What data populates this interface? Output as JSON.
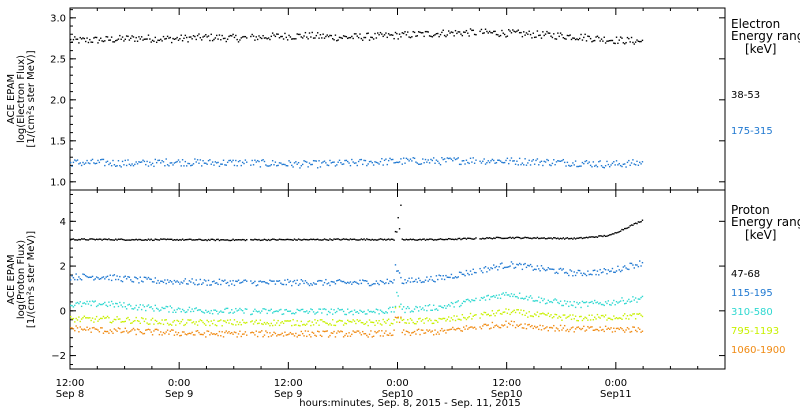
{
  "x_axis": {
    "ticks": [
      {
        "time": "12:00",
        "date": "Sep 8"
      },
      {
        "time": "0:00",
        "date": "Sep 9"
      },
      {
        "time": "12:00",
        "date": "Sep 9"
      },
      {
        "time": "0:00",
        "date": "Sep10"
      },
      {
        "time": "12:00",
        "date": "Sep10"
      },
      {
        "time": "0:00",
        "date": "Sep11"
      }
    ],
    "label": "hours:minutes, Sep.  8, 2015 - Sep. 11, 2015"
  },
  "chart_data": [
    {
      "type": "scatter",
      "ylabel_lines": [
        "ACE EPAM",
        "log(Electron Flux)",
        "[1/(cm²s ster MeV)]"
      ],
      "ylim": [
        0.9,
        3.12
      ],
      "yticks": [
        1.0,
        1.5,
        2.0,
        2.5,
        3.0
      ],
      "ytick_labels": [
        "1.0",
        "1.5",
        "2.0",
        "2.5",
        "3.0"
      ],
      "x_range": [
        "2015-09-08 12:00",
        "2015-09-11 12:00"
      ],
      "data_coverage": [
        "2015-09-08 12:00",
        "2015-09-11 03:00"
      ],
      "legend_heading": [
        "Electron",
        "Energy ranges",
        "[keV]"
      ],
      "series": [
        {
          "name": "38-53",
          "color": "#000000",
          "y": [
            2.73,
            2.74,
            2.76,
            2.75,
            2.77,
            2.76,
            2.78,
            2.79,
            2.77,
            2.78,
            2.8,
            2.82,
            2.83,
            2.82,
            2.8,
            2.78,
            2.74,
            2.72
          ]
        },
        {
          "name": "175-315",
          "color": "#1f78d1",
          "y": [
            1.24,
            1.24,
            1.23,
            1.25,
            1.24,
            1.24,
            1.23,
            1.22,
            1.23,
            1.25,
            1.26,
            1.26,
            1.27,
            1.26,
            1.25,
            1.24,
            1.22,
            1.24
          ]
        }
      ]
    },
    {
      "type": "scatter",
      "ylabel_lines": [
        "ACE EPAM",
        "log(Proton Flux)",
        "[1/(cm²s ster MeV)]"
      ],
      "ylim": [
        -2.6,
        5.4
      ],
      "yticks": [
        -2,
        0,
        2,
        4
      ],
      "ytick_labels": [
        "−2",
        "0",
        "2",
        "4"
      ],
      "legend_heading": [
        "Proton",
        "Energy ranges",
        "[keV]"
      ],
      "series": [
        {
          "name": "47-68",
          "color": "#000000",
          "y": [
            3.22,
            3.22,
            3.21,
            3.21,
            3.2,
            3.2,
            3.21,
            3.21,
            3.22,
            3.22,
            3.21,
            3.22,
            3.26,
            3.3,
            3.28,
            3.26,
            3.4,
            4.1
          ]
        },
        {
          "name": "115-195",
          "color": "#1f78d1",
          "y": [
            1.55,
            1.55,
            1.4,
            1.35,
            1.3,
            1.3,
            1.28,
            1.3,
            1.28,
            1.3,
            1.35,
            1.5,
            1.8,
            2.1,
            1.9,
            1.7,
            1.8,
            2.2
          ]
        },
        {
          "name": "310-580",
          "color": "#2ed8d0",
          "y": [
            0.3,
            0.35,
            0.2,
            0.1,
            0.05,
            0.0,
            0.0,
            0.0,
            0.0,
            0.0,
            0.1,
            0.2,
            0.5,
            0.8,
            0.5,
            0.3,
            0.4,
            0.6
          ]
        },
        {
          "name": "795-1193",
          "color": "#c8f000",
          "y": [
            -0.35,
            -0.35,
            -0.4,
            -0.5,
            -0.5,
            -0.5,
            -0.5,
            -0.5,
            -0.5,
            -0.5,
            -0.45,
            -0.4,
            -0.2,
            0.0,
            -0.2,
            -0.3,
            -0.25,
            -0.2
          ]
        },
        {
          "name": "1060-1900",
          "color": "#f08a12",
          "y": [
            -0.75,
            -0.85,
            -0.9,
            -0.95,
            -1.0,
            -1.0,
            -1.0,
            -1.0,
            -1.0,
            -1.0,
            -0.95,
            -0.9,
            -0.7,
            -0.55,
            -0.7,
            -0.8,
            -0.8,
            -0.8
          ]
        }
      ]
    }
  ]
}
